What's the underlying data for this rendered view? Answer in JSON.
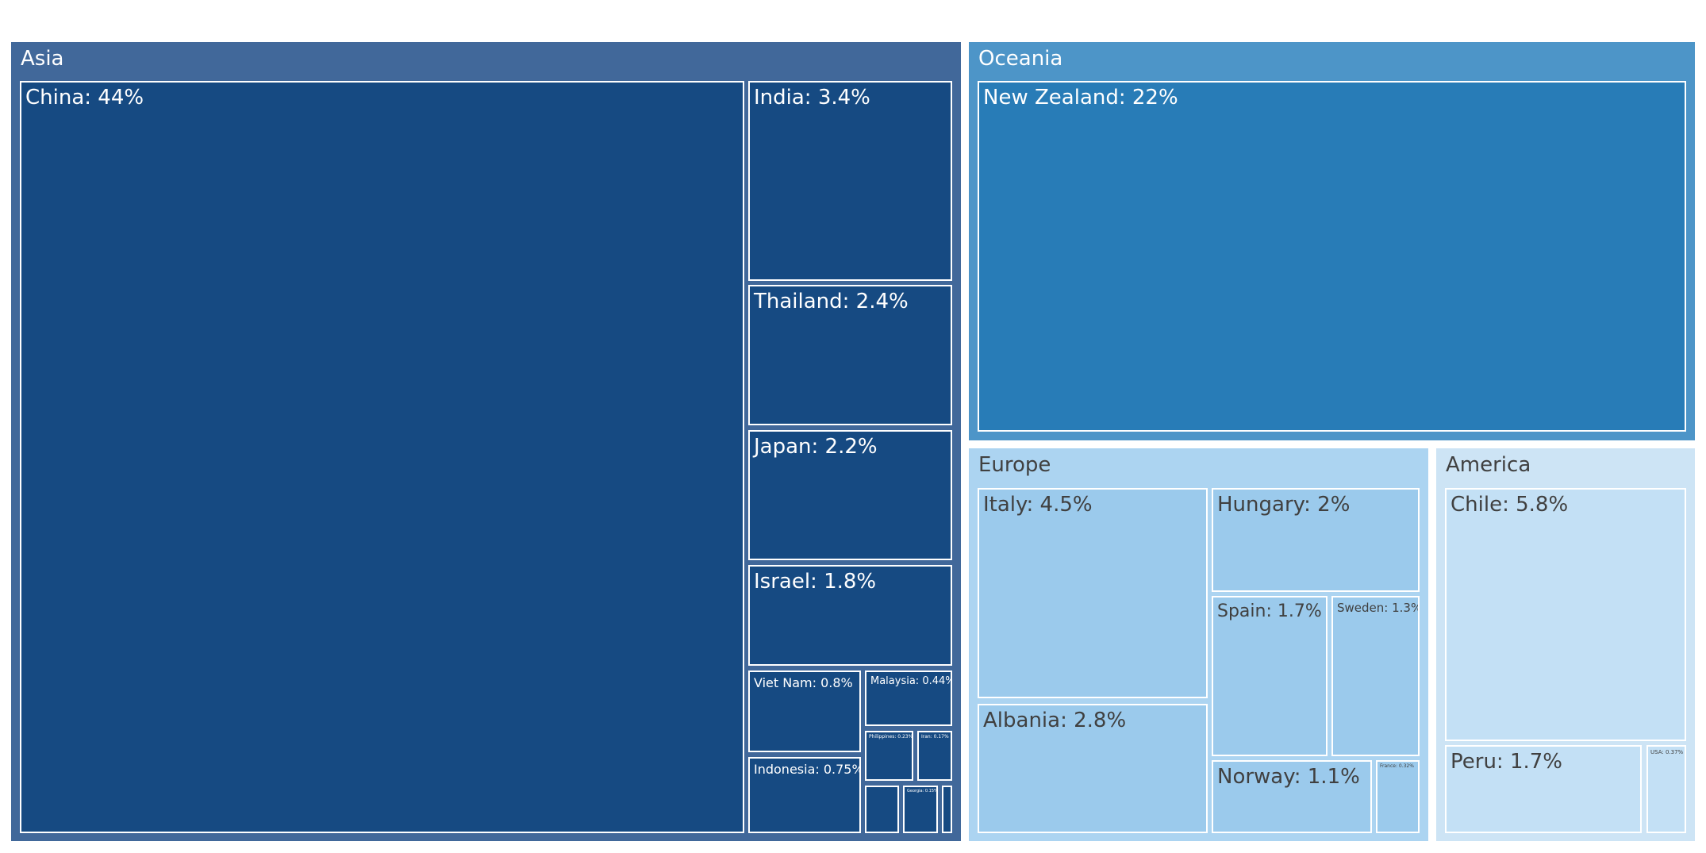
{
  "chart_data": {
    "type": "treemap",
    "colors": {
      "asia_header": "#41689a",
      "asia_leaf": "#164a82",
      "oceania_header": "#4d95c8",
      "oceania_leaf": "#287cb7",
      "europe_header": "#acd4f1",
      "europe_leaf": "#9bcaec",
      "america_header": "#cde4f5",
      "america_leaf": "#c3e0f5",
      "dark_text": "#ffffff",
      "light_text": "#404040"
    },
    "groups": [
      {
        "name": "Asia",
        "label": "Asia",
        "items": [
          {
            "name": "China",
            "value": 44,
            "label": "China: 44%"
          },
          {
            "name": "India",
            "value": 3.4,
            "label": "India: 3.4%"
          },
          {
            "name": "Thailand",
            "value": 2.4,
            "label": "Thailand: 2.4%"
          },
          {
            "name": "Japan",
            "value": 2.2,
            "label": "Japan: 2.2%"
          },
          {
            "name": "Israel",
            "value": 1.8,
            "label": "Israel: 1.8%"
          },
          {
            "name": "Viet Nam",
            "value": 0.8,
            "label": "Viet Nam: 0.8%"
          },
          {
            "name": "Indonesia",
            "value": 0.75,
            "label": "Indonesia: 0.75%"
          },
          {
            "name": "Malaysia",
            "value": 0.44,
            "label": "Malaysia: 0.44%"
          },
          {
            "name": "Philippines",
            "value": 0.23,
            "label": "Philippines: 0.23%"
          },
          {
            "name": "Iran",
            "value": 0.17,
            "label": "Iran: 0.17%"
          },
          {
            "name": "Asia small 1",
            "value": 0.15,
            "label": ""
          },
          {
            "name": "Georgia",
            "value": 0.15,
            "label": "Georgia: 0.15%"
          },
          {
            "name": "Asia small 2",
            "value": 0.04,
            "label": ""
          }
        ]
      },
      {
        "name": "Oceania",
        "label": "Oceania",
        "items": [
          {
            "name": "New Zealand",
            "value": 22,
            "label": "New Zealand: 22%"
          }
        ]
      },
      {
        "name": "Europe",
        "label": "Europe",
        "items": [
          {
            "name": "Italy",
            "value": 4.5,
            "label": "Italy: 4.5%"
          },
          {
            "name": "Albania",
            "value": 2.8,
            "label": "Albania: 2.8%"
          },
          {
            "name": "Hungary",
            "value": 2,
            "label": "Hungary: 2%"
          },
          {
            "name": "Spain",
            "value": 1.7,
            "label": "Spain: 1.7%"
          },
          {
            "name": "Sweden",
            "value": 1.3,
            "label": "Sweden: 1.3%"
          },
          {
            "name": "Norway",
            "value": 1.1,
            "label": "Norway: 1.1%"
          },
          {
            "name": "France",
            "value": 0.32,
            "label": "France: 0.32%"
          }
        ]
      },
      {
        "name": "America",
        "label": "America",
        "items": [
          {
            "name": "Chile",
            "value": 5.8,
            "label": "Chile: 5.8%"
          },
          {
            "name": "Peru",
            "value": 1.7,
            "label": "Peru: 1.7%"
          },
          {
            "name": "USA",
            "value": 0.37,
            "label": "USA: 0.37%"
          }
        ]
      }
    ]
  }
}
